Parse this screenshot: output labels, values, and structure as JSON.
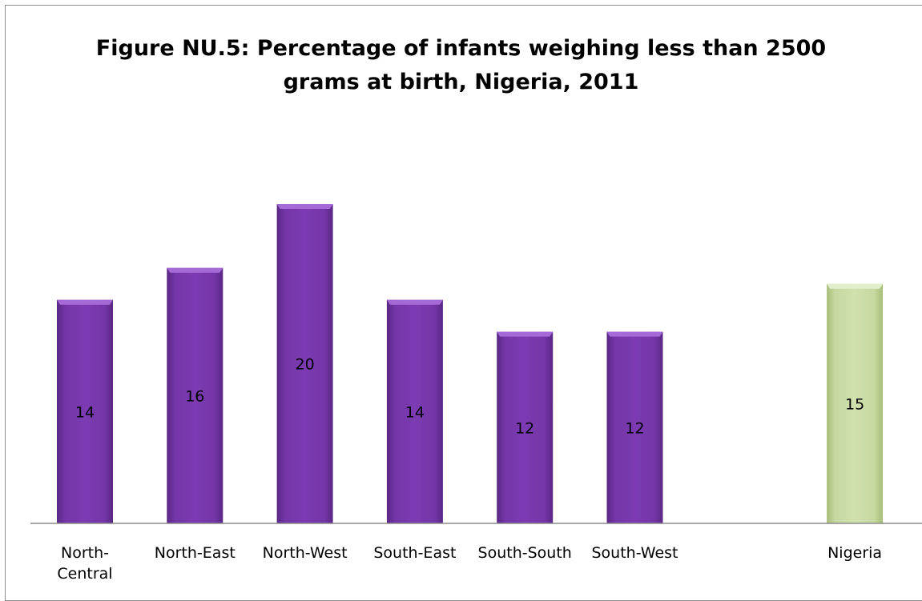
{
  "chart_data": {
    "type": "bar",
    "title": "Figure NU.5: Percentage of infants weighing less than 2500 grams at birth, Nigeria, 2011",
    "title_lines": [
      "Figure NU.5: Percentage of infants weighing less than 2500",
      "grams at birth, Nigeria, 2011"
    ],
    "categories": [
      "North-Central",
      "North-East",
      "North-West",
      "South-East",
      "South-South",
      "South-West",
      "Nigeria"
    ],
    "category_label_lines": [
      [
        "North-",
        "Central"
      ],
      [
        "North-East"
      ],
      [
        "North-West"
      ],
      [
        "South-East"
      ],
      [
        "South-South"
      ],
      [
        "South-West"
      ],
      [
        "Nigeria"
      ]
    ],
    "values": [
      14,
      16,
      20,
      14,
      12,
      12,
      15
    ],
    "bar_colors": [
      "#7030a0",
      "#7030a0",
      "#7030a0",
      "#7030a0",
      "#7030a0",
      "#7030a0",
      "#c3d69b"
    ],
    "gap_before_last": true,
    "xlabel": "",
    "ylabel": "",
    "ylim": [
      0,
      20
    ],
    "grid": false,
    "legend": "none",
    "data_labels": true
  }
}
